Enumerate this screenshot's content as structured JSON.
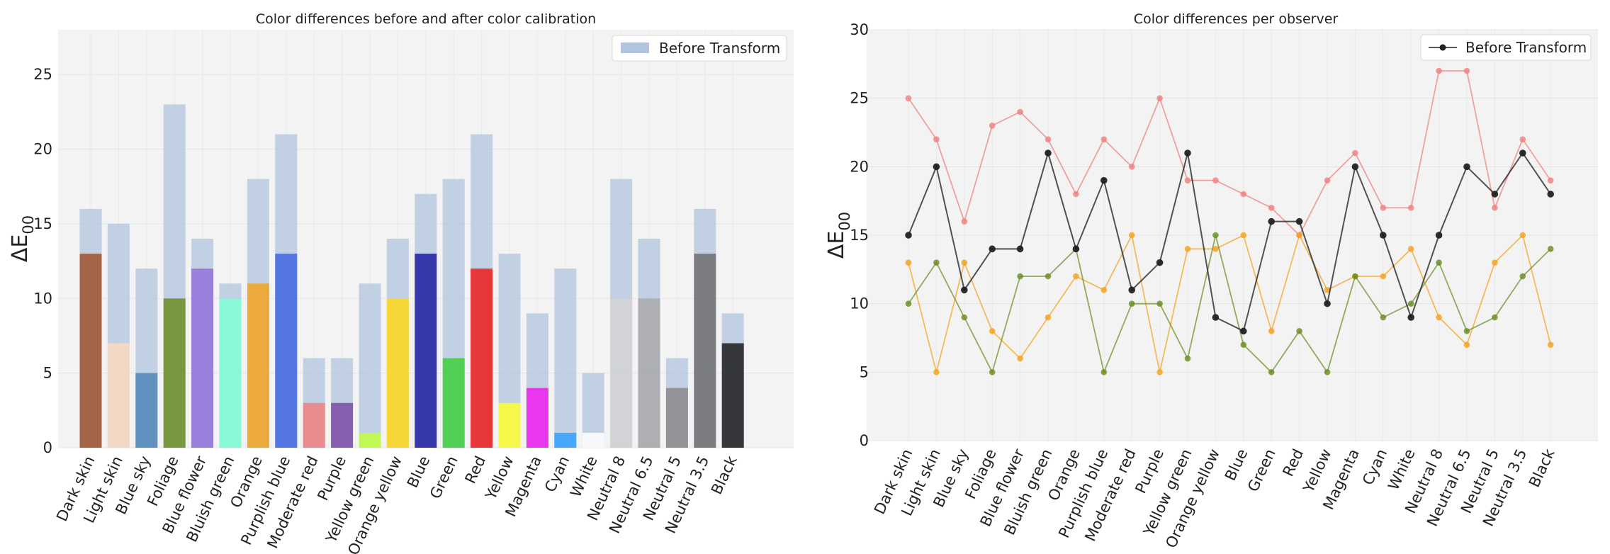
{
  "chart_data": [
    {
      "type": "bar",
      "title": "Color differences before and after color calibration",
      "ylabel": "ΔE",
      "ylabel_sub": "00",
      "ylim": [
        0,
        28
      ],
      "yticks": [
        0,
        5,
        10,
        15,
        20,
        25
      ],
      "grid": true,
      "legend_position": "top-right",
      "categories": [
        "Dark skin",
        "Light skin",
        "Blue sky",
        "Foliage",
        "Blue flower",
        "Bluish green",
        "Orange",
        "Purplish blue",
        "Moderate red",
        "Purple",
        "Yellow green",
        "Orange yellow",
        "Blue",
        "Green",
        "Red",
        "Yellow",
        "Magenta",
        "Cyan",
        "White",
        "Neutral 8",
        "Neutral 6.5",
        "Neutral 5",
        "Neutral 3.5",
        "Black"
      ],
      "series": [
        {
          "name": "Before Transform",
          "color": "#b0c4de",
          "values": [
            16,
            15,
            12,
            23,
            14,
            11,
            18,
            21,
            6,
            6,
            11,
            14,
            17,
            18,
            21,
            13,
            9,
            12,
            5,
            18,
            14,
            6,
            16,
            9
          ]
        },
        {
          "color_per_bar": [
            "#a0522d",
            "#fadbc0",
            "#4f86b8",
            "#6b8e23",
            "#9370db",
            "#7fffd4",
            "#f4a31f",
            "#4166e1",
            "#f08080",
            "#7b4ba8",
            "#bfff3d",
            "#ffd81c",
            "#1c1ca0",
            "#3cd13c",
            "#ee1c1c",
            "#ffff2e",
            "#ee1ced",
            "#30a0ff",
            "#ffffff",
            "#d3d3d3",
            "#a9a9a9",
            "#8a8a8a",
            "#6e6e6e",
            "#1c1c1c"
          ],
          "values": [
            13,
            7,
            5,
            10,
            12,
            10,
            11,
            13,
            3,
            3,
            1,
            10,
            13,
            6,
            12,
            3,
            4,
            1,
            1,
            10,
            10,
            4,
            13,
            7
          ]
        }
      ]
    },
    {
      "type": "line",
      "title": "Color differences per observer",
      "ylabel": "ΔE",
      "ylabel_sub": "00",
      "ylim": [
        0,
        30
      ],
      "yticks": [
        0,
        5,
        10,
        15,
        20,
        25,
        30
      ],
      "grid": true,
      "legend_position": "top-right",
      "categories": [
        "Dark skin",
        "Light skin",
        "Blue sky",
        "Foliage",
        "Blue flower",
        "Bluish green",
        "Orange",
        "Purplish blue",
        "Moderate red",
        "Purple",
        "Yellow green",
        "Orange yellow",
        "Blue",
        "Green",
        "Red",
        "Yellow",
        "Magenta",
        "Cyan",
        "White",
        "Neutral 8",
        "Neutral 6.5",
        "Neutral 5",
        "Neutral 3.5",
        "Black"
      ],
      "series": [
        {
          "color": "#f08080",
          "values": [
            25,
            22,
            16,
            23,
            24,
            22,
            18,
            22,
            20,
            25,
            19,
            19,
            18,
            17,
            15,
            19,
            21,
            17,
            17,
            27,
            27,
            17,
            22,
            19
          ]
        },
        {
          "color": "#f4a31f",
          "values": [
            13,
            5,
            13,
            8,
            6,
            9,
            12,
            11,
            15,
            5,
            14,
            14,
            15,
            8,
            15,
            11,
            12,
            12,
            14,
            9,
            7,
            13,
            15,
            7
          ]
        },
        {
          "color": "#6b8e23",
          "values": [
            10,
            13,
            9,
            5,
            12,
            12,
            14,
            5,
            10,
            10,
            6,
            15,
            7,
            5,
            8,
            5,
            12,
            9,
            10,
            13,
            8,
            9,
            12,
            14
          ]
        },
        {
          "name": "Before Transform",
          "color": "#222222",
          "values": [
            15,
            20,
            11,
            14,
            14,
            21,
            14,
            19,
            11,
            13,
            21,
            9,
            8,
            16,
            16,
            10,
            20,
            15,
            9,
            15,
            20,
            18,
            21,
            18
          ]
        }
      ]
    }
  ]
}
